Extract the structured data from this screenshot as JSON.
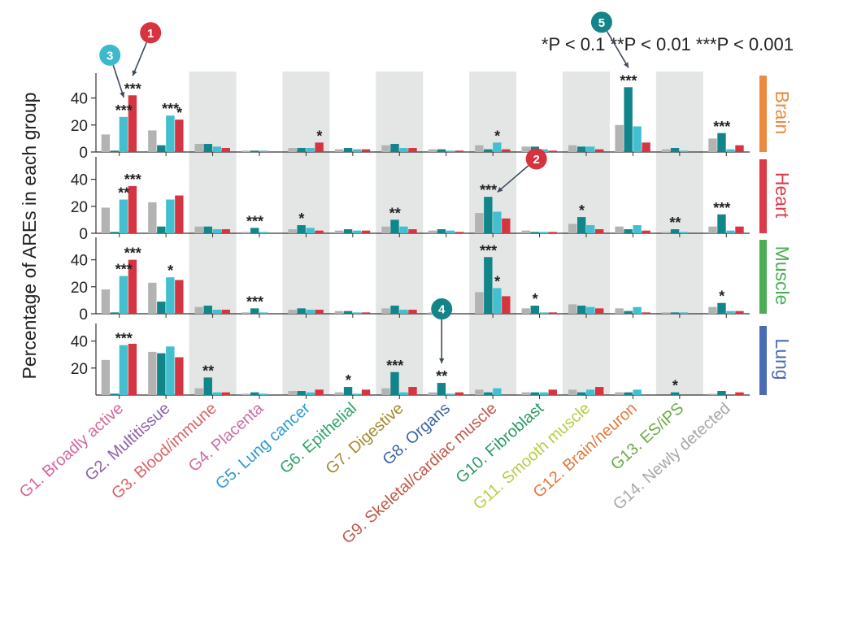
{
  "chart_data": {
    "type": "bar",
    "ylabel": "Percentage of AREs in each group",
    "legend_text": "*P < 0.1 **P < 0.01 ***P < 0.001",
    "series_colors": [
      "#b3b3b3",
      "#11858a",
      "#42c0d0",
      "#d53541"
    ],
    "categories": [
      {
        "label": "G1. Broadly active",
        "color": "#d6679e"
      },
      {
        "label": "G2. Multitissue",
        "color": "#8e62a8"
      },
      {
        "label": "G3. Blood/immune",
        "color": "#d9636a"
      },
      {
        "label": "G4. Placenta",
        "color": "#c86fa6"
      },
      {
        "label": "G5. Lung cancer",
        "color": "#2d9ad1"
      },
      {
        "label": "G6. Epithelial",
        "color": "#2ea56b"
      },
      {
        "label": "G7. Digestive",
        "color": "#a28a2b"
      },
      {
        "label": "G8. Organs",
        "color": "#3d64a5"
      },
      {
        "label": "G9. Skeletal/cardiac muscle",
        "color": "#c0584b"
      },
      {
        "label": "G10. Fibroblast",
        "color": "#2a9a63"
      },
      {
        "label": "G11. Smooth muscle",
        "color": "#b9cc45"
      },
      {
        "label": "G12. Brain/neuron",
        "color": "#e07a3c"
      },
      {
        "label": "G13. ES/iPS",
        "color": "#6caa45"
      },
      {
        "label": "G14. Newly detected",
        "color": "#a8a8a8"
      }
    ],
    "panels": [
      {
        "name": "Brain",
        "color": "#ec8a3f",
        "ylim": [
          0,
          55
        ],
        "yticks": [
          "0",
          "20",
          "40"
        ],
        "values": [
          [
            13,
            1,
            26,
            42
          ],
          [
            16,
            5,
            27,
            24
          ],
          [
            6,
            6,
            4,
            3
          ],
          [
            1,
            1,
            1,
            0
          ],
          [
            3,
            3,
            3,
            7
          ],
          [
            2,
            3,
            2,
            2
          ],
          [
            5,
            6,
            3,
            3
          ],
          [
            2,
            2,
            1,
            1
          ],
          [
            5,
            2,
            7,
            2
          ],
          [
            4,
            4,
            2,
            1
          ],
          [
            5,
            4,
            4,
            2
          ],
          [
            20,
            48,
            19,
            7
          ],
          [
            2,
            3,
            1,
            0
          ],
          [
            10,
            14,
            2,
            5
          ]
        ],
        "significance": [
          [
            "",
            "",
            "***",
            "***"
          ],
          [
            "",
            "",
            "***",
            "*"
          ],
          [
            "",
            "",
            "",
            ""
          ],
          [
            "",
            "",
            "",
            ""
          ],
          [
            "",
            "",
            "",
            "*"
          ],
          [
            "",
            "",
            "",
            ""
          ],
          [
            "",
            "",
            "",
            ""
          ],
          [
            "",
            "",
            "",
            ""
          ],
          [
            "",
            "",
            "*",
            ""
          ],
          [
            "",
            "",
            "",
            ""
          ],
          [
            "",
            "",
            "",
            ""
          ],
          [
            "",
            "***",
            "",
            ""
          ],
          [
            "",
            "",
            "",
            ""
          ],
          [
            "",
            "***",
            "",
            ""
          ]
        ]
      },
      {
        "name": "Heart",
        "color": "#dd3a48",
        "ylim": [
          0,
          55
        ],
        "yticks": [
          "0",
          "20",
          "40"
        ],
        "values": [
          [
            19,
            1,
            25,
            35
          ],
          [
            23,
            5,
            25,
            28
          ],
          [
            5,
            5,
            3,
            3
          ],
          [
            1,
            4,
            1,
            0
          ],
          [
            3,
            6,
            4,
            2
          ],
          [
            2,
            3,
            2,
            2
          ],
          [
            5,
            10,
            5,
            3
          ],
          [
            2,
            3,
            2,
            1
          ],
          [
            15,
            27,
            16,
            11
          ],
          [
            2,
            1,
            1,
            1
          ],
          [
            7,
            12,
            6,
            3
          ],
          [
            5,
            3,
            6,
            2
          ],
          [
            1,
            3,
            1,
            0
          ],
          [
            5,
            14,
            2,
            5
          ]
        ],
        "significance": [
          [
            "",
            "",
            "**",
            "***"
          ],
          [
            "",
            "",
            "",
            ""
          ],
          [
            "",
            "",
            "",
            ""
          ],
          [
            "",
            "***",
            "",
            ""
          ],
          [
            "",
            "*",
            "",
            ""
          ],
          [
            "",
            "",
            "",
            ""
          ],
          [
            "",
            "**",
            "",
            ""
          ],
          [
            "",
            "",
            "",
            ""
          ],
          [
            "",
            "***",
            "",
            ""
          ],
          [
            "",
            "",
            "",
            ""
          ],
          [
            "",
            "*",
            "",
            ""
          ],
          [
            "",
            "",
            "",
            ""
          ],
          [
            "",
            "**",
            "",
            ""
          ],
          [
            "",
            "***",
            "",
            ""
          ]
        ]
      },
      {
        "name": "Muscle",
        "color": "#4cad55",
        "ylim": [
          0,
          55
        ],
        "yticks": [
          "0",
          "20",
          "40"
        ],
        "values": [
          [
            18,
            1,
            28,
            40
          ],
          [
            23,
            9,
            27,
            25
          ],
          [
            5,
            6,
            3,
            3
          ],
          [
            1,
            4,
            1,
            0
          ],
          [
            3,
            4,
            3,
            3
          ],
          [
            2,
            2,
            1,
            1
          ],
          [
            4,
            6,
            3,
            3
          ],
          [
            1,
            1,
            0,
            0
          ],
          [
            16,
            42,
            19,
            13
          ],
          [
            4,
            6,
            1,
            1
          ],
          [
            7,
            6,
            5,
            4
          ],
          [
            4,
            2,
            5,
            1
          ],
          [
            1,
            1,
            1,
            0
          ],
          [
            5,
            8,
            2,
            2
          ]
        ],
        "significance": [
          [
            "",
            "",
            "***",
            "***"
          ],
          [
            "",
            "",
            "*",
            ""
          ],
          [
            "",
            "",
            "",
            ""
          ],
          [
            "",
            "***",
            "",
            ""
          ],
          [
            "",
            "",
            "",
            ""
          ],
          [
            "",
            "",
            "",
            ""
          ],
          [
            "",
            "",
            "",
            ""
          ],
          [
            "",
            "",
            "",
            ""
          ],
          [
            "",
            "***",
            "*",
            ""
          ],
          [
            "",
            "*",
            "",
            ""
          ],
          [
            "",
            "",
            "",
            ""
          ],
          [
            "",
            "",
            "",
            ""
          ],
          [
            "",
            "",
            "",
            ""
          ],
          [
            "",
            "*",
            "",
            ""
          ]
        ]
      },
      {
        "name": "Lung",
        "color": "#4a6cb5",
        "ylim": [
          0,
          55
        ],
        "yticks": [
          "20",
          "40"
        ],
        "values": [
          [
            26,
            1,
            37,
            38
          ],
          [
            32,
            31,
            36,
            28
          ],
          [
            5,
            13,
            2,
            2
          ],
          [
            1,
            2,
            1,
            0
          ],
          [
            3,
            3,
            2,
            4
          ],
          [
            2,
            6,
            1,
            4
          ],
          [
            5,
            17,
            2,
            6
          ],
          [
            2,
            9,
            1,
            2
          ],
          [
            4,
            2,
            5,
            0
          ],
          [
            2,
            2,
            2,
            4
          ],
          [
            4,
            2,
            4,
            6
          ],
          [
            2,
            2,
            4,
            0
          ],
          [
            0,
            2,
            0,
            0
          ],
          [
            1,
            3,
            0,
            2
          ]
        ],
        "significance": [
          [
            "",
            "",
            "***",
            ""
          ],
          [
            "",
            "",
            "",
            ""
          ],
          [
            "",
            "**",
            "",
            ""
          ],
          [
            "",
            "",
            "",
            ""
          ],
          [
            "",
            "",
            "",
            ""
          ],
          [
            "",
            "*",
            "",
            ""
          ],
          [
            "",
            "***",
            "",
            ""
          ],
          [
            "",
            "**",
            "",
            ""
          ],
          [
            "",
            "",
            "",
            ""
          ],
          [
            "",
            "",
            "",
            ""
          ],
          [
            "",
            "",
            "",
            ""
          ],
          [
            "",
            "",
            "",
            ""
          ],
          [
            "",
            "*",
            "",
            ""
          ],
          [
            "",
            "",
            "",
            ""
          ]
        ]
      }
    ],
    "callouts": [
      {
        "label": "1",
        "color": "#d8323e",
        "panel": 0,
        "category": 0,
        "series": 3
      },
      {
        "label": "2",
        "color": "#d8323e",
        "panel": 1,
        "category": 8,
        "series": 2
      },
      {
        "label": "3",
        "color": "#3cb9cc",
        "panel": 0,
        "category": 0,
        "series": 2
      },
      {
        "label": "4",
        "color": "#138588",
        "panel": 3,
        "category": 7,
        "series": 1
      },
      {
        "label": "5",
        "color": "#138588",
        "panel": 0,
        "category": 11,
        "series": 1
      }
    ]
  }
}
